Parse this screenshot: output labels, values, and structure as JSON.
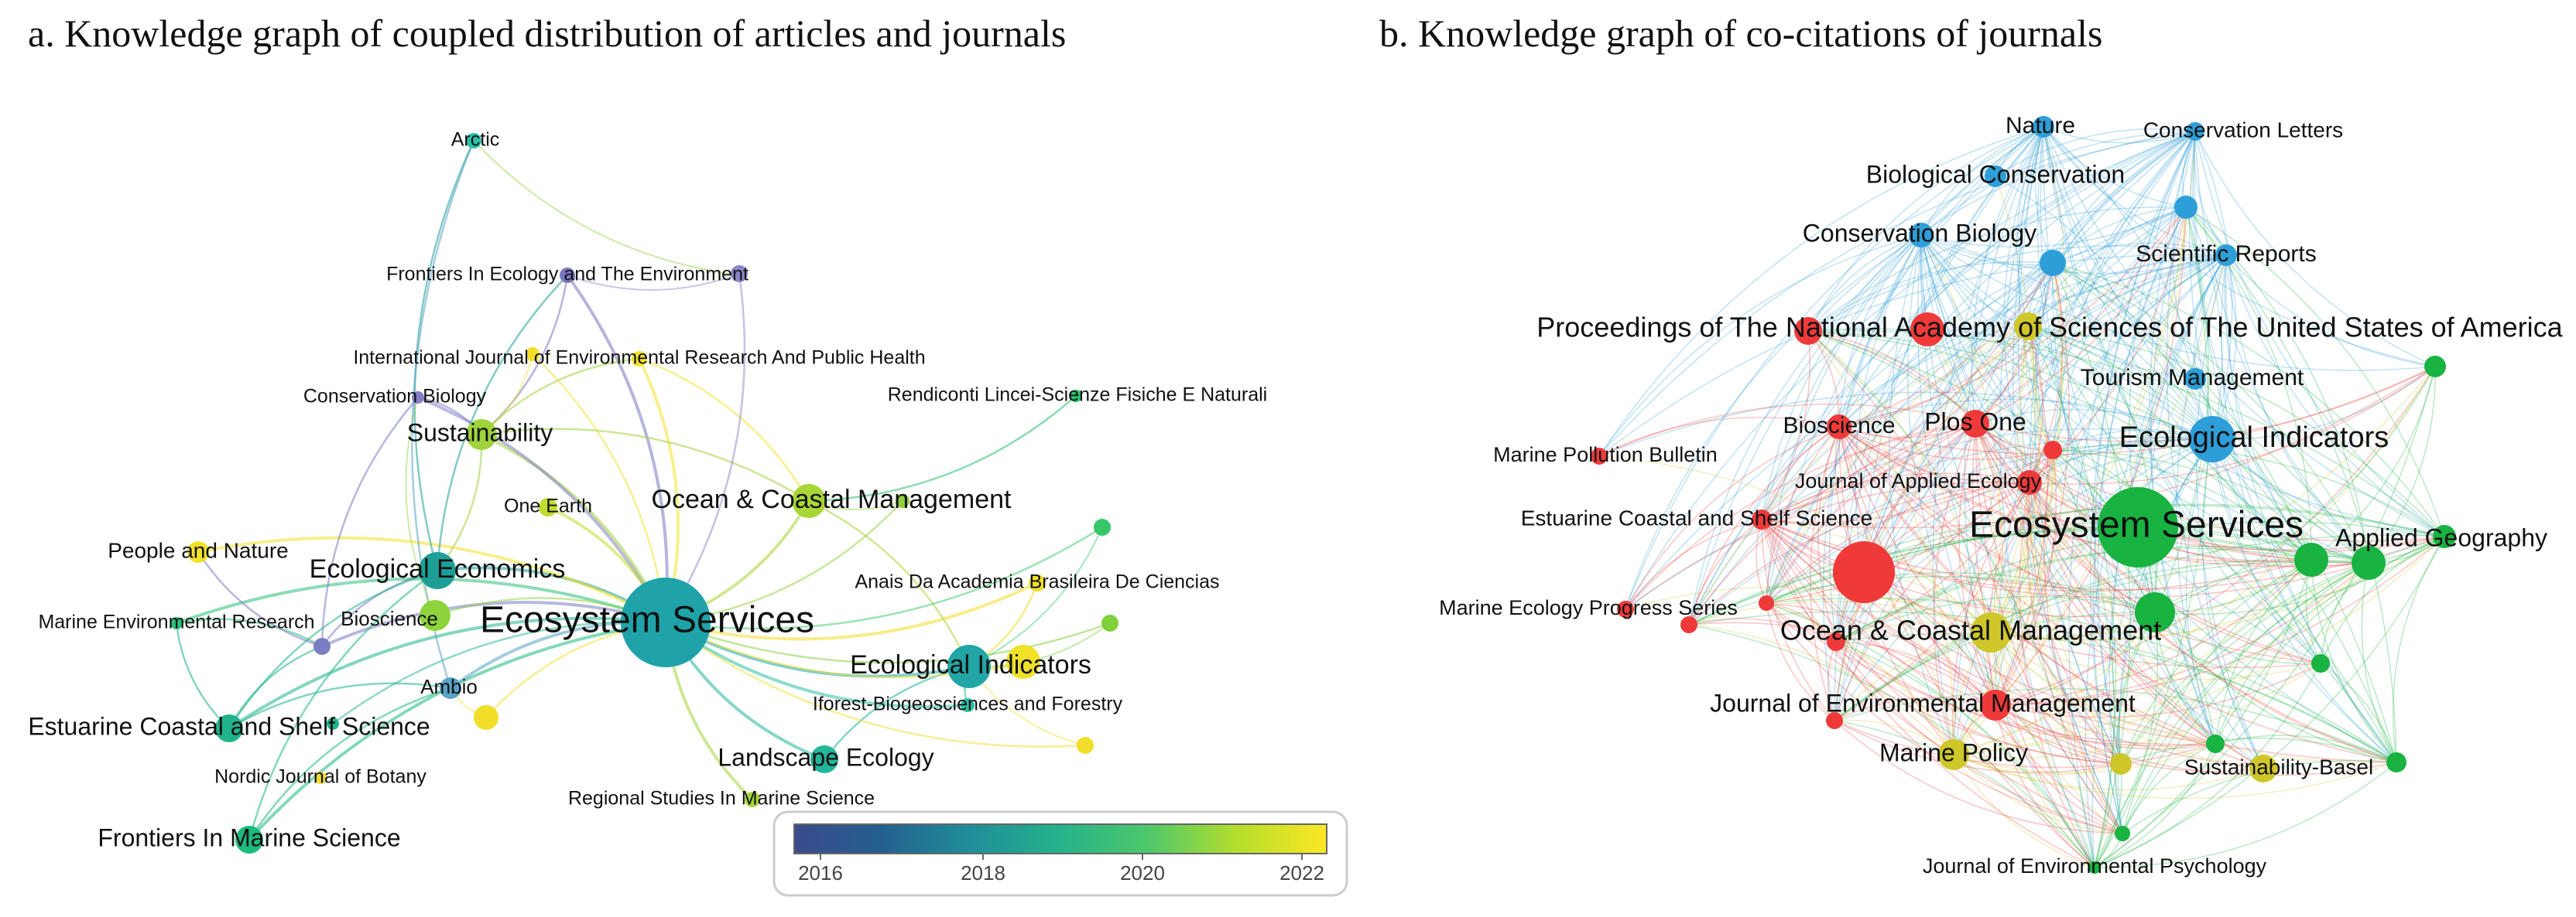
{
  "panel_a": {
    "title": "a. Knowledge graph of coupled distribution of articles and journals",
    "nodes": [
      {
        "id": "a1",
        "label": "Ecosystem Services",
        "color": "#1fa3a9",
        "big": true
      },
      {
        "id": "a2",
        "label": "Ecological Indicators",
        "color": "#21a5a5"
      },
      {
        "id": "a3",
        "label": "Ocean & Coastal Management",
        "color": "#a9d636"
      },
      {
        "id": "a4",
        "label": "Ecological Economics",
        "color": "#1d9f97"
      },
      {
        "id": "a5",
        "label": "Sustainability",
        "color": "#9fd43c"
      },
      {
        "id": "a6",
        "label": "Landscape Ecology",
        "color": "#22b59a"
      },
      {
        "id": "a7",
        "label": "Estuarine Coastal and Shelf Science",
        "color": "#20b38c"
      },
      {
        "id": "a8",
        "label": "Frontiers In Marine Science",
        "color": "#1cba7e"
      },
      {
        "id": "a9",
        "label": "Ambio",
        "color": "#5aa2c6"
      },
      {
        "id": "a10",
        "label": "Bioscience",
        "color": "#7b7ec4"
      },
      {
        "id": "a11",
        "label": "People and Nature",
        "color": "#f2e12a"
      },
      {
        "id": "a12",
        "label": "Marine Environmental Research",
        "color": "#2bbf7c"
      },
      {
        "id": "a13",
        "label": "Arctic",
        "color": "#2bbfa7"
      },
      {
        "id": "a14",
        "label": "Frontiers In Ecology and The Environment",
        "color": "#7a76c0"
      },
      {
        "id": "a15",
        "label": "International Journal of Environmental Research And Public Health",
        "color": "#f3e32c"
      },
      {
        "id": "a16",
        "label": "Conservation Biology",
        "color": "#8580c6"
      },
      {
        "id": "a17",
        "label": "Rendiconti Lincei-Scienze Fisiche E Naturali",
        "color": "#2cc06d"
      },
      {
        "id": "a18",
        "label": "One Earth",
        "color": "#c3dc30"
      },
      {
        "id": "a19",
        "label": "Anais Da Academia Brasileira De Ciencias",
        "color": "#f1de28"
      },
      {
        "id": "a20",
        "label": "Iforest-Biogeosciences and Forestry",
        "color": "#2cbfa3"
      },
      {
        "id": "a21",
        "label": "Nordic Journal of Botany",
        "color": "#eedc2f"
      },
      {
        "id": "a22",
        "label": "Regional Studies In Marine Science",
        "color": "#a5d53c"
      }
    ],
    "colorbar": {
      "ticks": [
        "2016",
        "2018",
        "2020",
        "2022"
      ],
      "colors": [
        "#3b4b8c",
        "#24608f",
        "#1f8f9a",
        "#24b38a",
        "#4ec86a",
        "#b6de2b",
        "#fde725"
      ]
    }
  },
  "panel_b": {
    "title": "b. Knowledge graph of co-citations of journals",
    "cluster_colors": [
      "#f03a3a",
      "#2e9ed8",
      "#18b340",
      "#cfc72a"
    ],
    "nodes": [
      {
        "id": "b1",
        "label": "Ecosystem Services",
        "color": "#18b340",
        "big": true
      },
      {
        "id": "b2",
        "label": "Ecological Indicators",
        "color": "#2e9ed8"
      },
      {
        "id": "b3",
        "label": "Ocean & Coastal Management",
        "color": "#cfc72a"
      },
      {
        "id": "b4",
        "label": "Proceedings of The National Academy of Sciences of The United States of America",
        "color": "#f03a3a"
      },
      {
        "id": "b5",
        "label": "Nature",
        "color": "#2e9ed8"
      },
      {
        "id": "b6",
        "label": "Conservation Letters",
        "color": "#2e9ed8"
      },
      {
        "id": "b7",
        "label": "Biological Conservation",
        "color": "#2e9ed8"
      },
      {
        "id": "b8",
        "label": "Conservation Biology",
        "color": "#2e9ed8"
      },
      {
        "id": "b9",
        "label": "Scientific Reports",
        "color": "#2e9ed8"
      },
      {
        "id": "b10",
        "label": "Tourism Management",
        "color": "#2e9ed8"
      },
      {
        "id": "b11",
        "label": "Bioscience",
        "color": "#f03a3a"
      },
      {
        "id": "b12",
        "label": "Plos One",
        "color": "#f03a3a"
      },
      {
        "id": "b13",
        "label": "Marine Pollution Bulletin",
        "color": "#f03a3a"
      },
      {
        "id": "b14",
        "label": "Journal of Applied Ecology",
        "color": "#f03a3a"
      },
      {
        "id": "b15",
        "label": "Estuarine Coastal and Shelf Science",
        "color": "#f03a3a"
      },
      {
        "id": "b16",
        "label": "Marine Ecology Progress Series",
        "color": "#f03a3a"
      },
      {
        "id": "b17",
        "label": "Journal of Environmental Management",
        "color": "#f03a3a"
      },
      {
        "id": "b18",
        "label": "Marine Policy",
        "color": "#cfc72a"
      },
      {
        "id": "b19",
        "label": "Sustainability-Basel",
        "color": "#cfc72a"
      },
      {
        "id": "b20",
        "label": "Applied Geography",
        "color": "#18b340"
      },
      {
        "id": "b21",
        "label": "Journal of Environmental Psychology",
        "color": "#18b340"
      }
    ]
  }
}
